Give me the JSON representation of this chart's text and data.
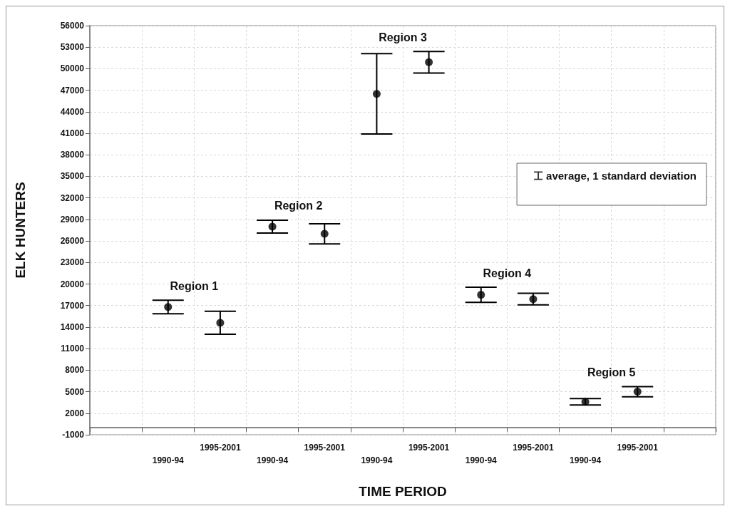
{
  "chart_data": {
    "type": "scatter",
    "xlabel": "TIME PERIOD",
    "ylabel": "ELK HUNTERS",
    "categories": [
      null,
      "1990-94",
      "1995-2001",
      "1990-94",
      "1995-2001",
      "1990-94",
      "1995-2001",
      "1990-94",
      "1995-2001",
      "1990-94",
      "1995-2001",
      null
    ],
    "series": [
      {
        "name": "average, 1 standard deviation",
        "color": "#000000",
        "values": [
          null,
          16800,
          14600,
          28000,
          27000,
          46500,
          50900,
          18500,
          17900,
          3600,
          5000,
          null
        ],
        "errors": [
          null,
          950,
          1600,
          900,
          1400,
          5600,
          1500,
          1050,
          800,
          450,
          700,
          null
        ]
      }
    ],
    "ylim": [
      -1000,
      56000
    ],
    "yticks": [
      -1000,
      2000,
      5000,
      8000,
      11000,
      14000,
      17000,
      20000,
      23000,
      26000,
      29000,
      32000,
      35000,
      38000,
      41000,
      44000,
      47000,
      50000,
      53000,
      56000
    ],
    "annotations": [
      "Region 1",
      "Region 2",
      "Region 3",
      "Region 4",
      "Region 5"
    ],
    "grid": true,
    "legend": "top right",
    "marker": "circle"
  }
}
